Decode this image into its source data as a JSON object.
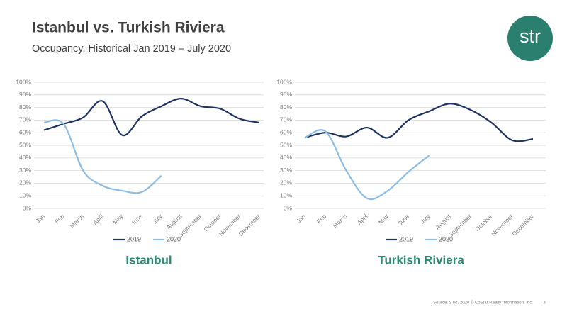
{
  "title": "Istanbul vs. Turkish Riviera",
  "subtitle": "Occupancy, Historical Jan 2019 – July 2020",
  "logo": "str",
  "source": "Source: STR. 2020 © CoStar Realty Information, Inc.",
  "page": "3",
  "chart_data": [
    {
      "type": "line",
      "title": "Istanbul",
      "categories": [
        "Jan",
        "Feb",
        "March",
        "April",
        "May",
        "June",
        "July",
        "August",
        "September",
        "October",
        "November",
        "December"
      ],
      "series": [
        {
          "name": "2019",
          "color": "#1f3461",
          "values": [
            62,
            67,
            72,
            85,
            58,
            73,
            81,
            87,
            81,
            79,
            71,
            68
          ]
        },
        {
          "name": "2020",
          "color": "#8dbde3",
          "values": [
            68,
            67,
            30,
            18,
            14,
            13,
            26,
            null,
            null,
            null,
            null,
            null
          ]
        }
      ],
      "ylim": [
        0,
        100
      ],
      "yticks": [
        {
          "value": 0,
          "label": "0%"
        },
        {
          "value": 10,
          "label": "10%"
        },
        {
          "value": 20,
          "label": "20%"
        },
        {
          "value": 30,
          "label": "30%"
        },
        {
          "value": 40,
          "label": "40%"
        },
        {
          "value": 50,
          "label": "50%"
        },
        {
          "value": 60,
          "label": "60%"
        },
        {
          "value": 70,
          "label": "70%"
        },
        {
          "value": 80,
          "label": "80%"
        },
        {
          "value": 90,
          "label": "90%"
        },
        {
          "value": 100,
          "label": "100%"
        }
      ],
      "grid": true,
      "legend": "bottom"
    },
    {
      "type": "line",
      "title": "Turkish Riviera",
      "categories": [
        "Jan",
        "Feb",
        "March",
        "April",
        "May",
        "June",
        "July",
        "August",
        "September",
        "October",
        "November",
        "December"
      ],
      "series": [
        {
          "name": "2019",
          "color": "#1f3461",
          "values": [
            56,
            60,
            57,
            64,
            56,
            70,
            77,
            83,
            78,
            68,
            54,
            55
          ]
        },
        {
          "name": "2020",
          "color": "#8dbde3",
          "values": [
            56,
            61,
            30,
            8,
            14,
            29,
            42,
            null,
            null,
            null,
            null,
            null
          ]
        }
      ],
      "ylim": [
        0,
        100
      ],
      "yticks": [
        {
          "value": 0,
          "label": "0%"
        },
        {
          "value": 10,
          "label": "10%"
        },
        {
          "value": 20,
          "label": "20%"
        },
        {
          "value": 30,
          "label": "30%"
        },
        {
          "value": 40,
          "label": "40%"
        },
        {
          "value": 50,
          "label": "50%"
        },
        {
          "value": 60,
          "label": "60%"
        },
        {
          "value": 70,
          "label": "70%"
        },
        {
          "value": 80,
          "label": "80%"
        },
        {
          "value": 90,
          "label": "90%"
        },
        {
          "value": 100,
          "label": "100%"
        }
      ],
      "grid": true,
      "legend": "bottom"
    }
  ]
}
